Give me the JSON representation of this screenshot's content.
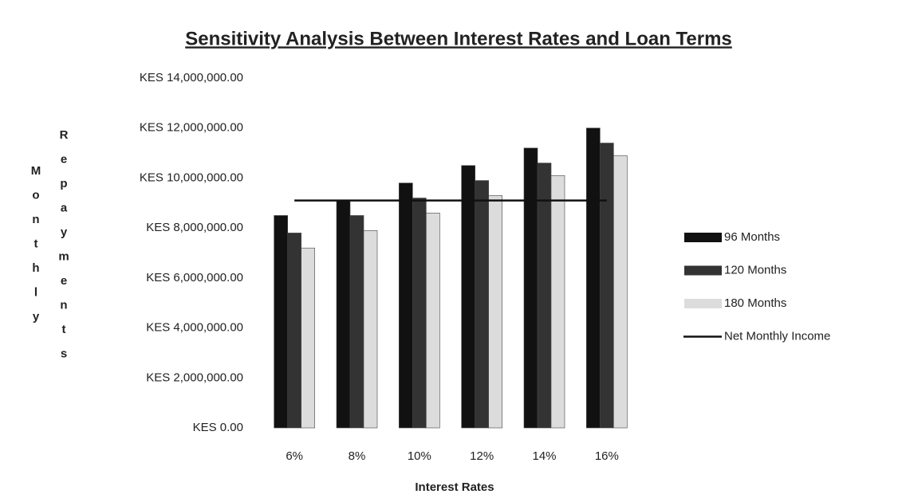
{
  "chart_data": {
    "type": "bar",
    "title": "Sensitivity Analysis Between Interest Rates and Loan Terms",
    "xlabel": "Interest Rates",
    "ylabel": [
      "Monthly",
      "Repayments"
    ],
    "categories": [
      "6%",
      "8%",
      "10%",
      "12%",
      "14%",
      "16%"
    ],
    "series": [
      {
        "name": "96 Months",
        "color": "#111111",
        "values": [
          8500000,
          9100000,
          9800000,
          10500000,
          11200000,
          12000000
        ]
      },
      {
        "name": "120 Months",
        "color": "#333333",
        "values": [
          7800000,
          8500000,
          9200000,
          9900000,
          10600000,
          11400000
        ]
      },
      {
        "name": "180 Months",
        "color": "#dcdcdc",
        "values": [
          7200000,
          7900000,
          8600000,
          9300000,
          10100000,
          10900000
        ]
      },
      {
        "name": "Net Monthly Income",
        "color": "#111111",
        "type": "line",
        "values": [
          9100000,
          9100000,
          9100000,
          9100000,
          9100000,
          9100000
        ]
      }
    ],
    "ylim": [
      0,
      14000000
    ],
    "yticks": [
      {
        "value": 0,
        "label": "KES 0.00"
      },
      {
        "value": 2000000,
        "label": "KES 2,000,000.00"
      },
      {
        "value": 4000000,
        "label": "KES 4,000,000.00"
      },
      {
        "value": 6000000,
        "label": "KES 6,000,000.00"
      },
      {
        "value": 8000000,
        "label": "KES 8,000,000.00"
      },
      {
        "value": 10000000,
        "label": "KES 10,000,000.00"
      },
      {
        "value": 12000000,
        "label": "KES 12,000,000.00"
      },
      {
        "value": 14000000,
        "label": "KES 14,000,000.00"
      }
    ],
    "grid": false,
    "legend": "right"
  }
}
